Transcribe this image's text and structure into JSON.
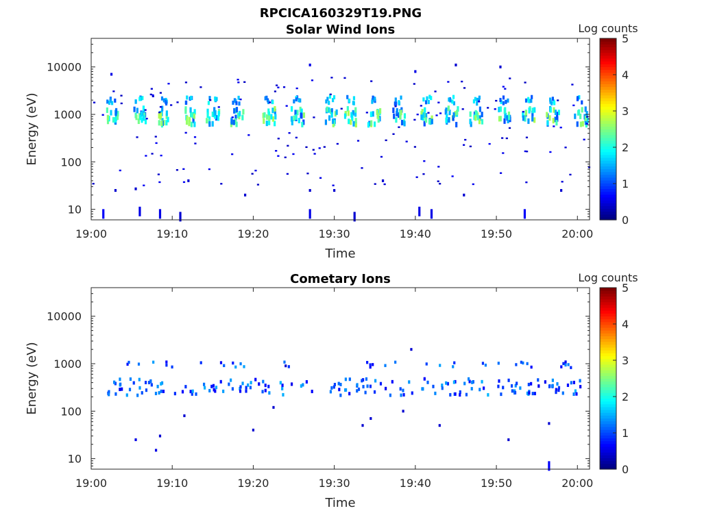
{
  "figure": {
    "suptitle": "RPCICA160329T19.PNG"
  },
  "colorbar": {
    "label": "Log counts",
    "ticks": [
      "0",
      "1",
      "2",
      "3",
      "4",
      "5"
    ],
    "range": [
      0,
      5
    ],
    "colormap": "jet"
  },
  "chart_data": [
    {
      "type": "heatmap",
      "title": "Solar Wind Ions",
      "xlabel": "Time",
      "ylabel": "Energy (eV)",
      "x_ticks": [
        "19:00",
        "19:10",
        "19:20",
        "19:30",
        "19:40",
        "19:50",
        "20:00"
      ],
      "y_ticks": [
        "10",
        "100",
        "1000",
        "10000"
      ],
      "y_scale": "log",
      "ylim_eV": [
        6,
        40000
      ],
      "xlim_min": [
        0,
        61.5
      ],
      "x_unit": "minutes after 19:00",
      "z_label": "Log counts",
      "zlim": [
        0,
        5
      ],
      "main_beam": {
        "energy_eV": 900,
        "secondary_energy_eV": 2000,
        "peak_log_counts": 2.8,
        "burst_times_min": [
          2.5,
          6,
          9,
          12,
          15,
          18,
          22,
          25.5,
          29.5,
          32,
          35,
          38,
          41.5,
          44.5,
          47.5,
          51,
          54,
          57,
          60.5
        ]
      },
      "sparse_points": [
        {
          "t": 1.5,
          "e": 8,
          "v": 0.6
        },
        {
          "t": 6,
          "e": 9,
          "v": 0.5
        },
        {
          "t": 8.5,
          "e": 8,
          "v": 0.5
        },
        {
          "t": 11,
          "e": 7,
          "v": 0.4
        },
        {
          "t": 27,
          "e": 8,
          "v": 0.5
        },
        {
          "t": 32.5,
          "e": 7,
          "v": 0.4
        },
        {
          "t": 40.5,
          "e": 9,
          "v": 0.5
        },
        {
          "t": 42,
          "e": 8,
          "v": 0.5
        },
        {
          "t": 53.5,
          "e": 8,
          "v": 0.6
        },
        {
          "t": 2.5,
          "e": 7000,
          "v": 0.5
        },
        {
          "t": 27,
          "e": 11000,
          "v": 0.5
        },
        {
          "t": 45,
          "e": 11000,
          "v": 0.4
        },
        {
          "t": 50.5,
          "e": 10000,
          "v": 0.4
        },
        {
          "t": 40,
          "e": 8000,
          "v": 0.5
        },
        {
          "t": 5.5,
          "e": 27,
          "v": 0.4
        },
        {
          "t": 12,
          "e": 40,
          "v": 0.4
        },
        {
          "t": 19,
          "e": 20,
          "v": 0.4
        },
        {
          "t": 27,
          "e": 25,
          "v": 0.4
        },
        {
          "t": 30,
          "e": 25,
          "v": 0.4
        },
        {
          "t": 46,
          "e": 20,
          "v": 0.4
        },
        {
          "t": 58,
          "e": 25,
          "v": 0.4
        },
        {
          "t": 3,
          "e": 25,
          "v": 0.4
        },
        {
          "t": 36,
          "e": 40,
          "v": 0.4
        }
      ]
    },
    {
      "type": "heatmap",
      "title": "Cometary Ions",
      "xlabel": "Time",
      "ylabel": "Energy (eV)",
      "x_ticks": [
        "19:00",
        "19:10",
        "19:20",
        "19:30",
        "19:40",
        "19:50",
        "20:00"
      ],
      "y_ticks": [
        "10",
        "100",
        "1000",
        "10000"
      ],
      "y_scale": "log",
      "ylim_eV": [
        6,
        40000
      ],
      "xlim_min": [
        0,
        61.5
      ],
      "x_unit": "minutes after 19:00",
      "z_label": "Log counts",
      "zlim": [
        0,
        5
      ],
      "main_band": {
        "energy_eV": 320,
        "upper_energy_eV": 950,
        "peak_log_counts": 1.8
      },
      "sparse_points": [
        {
          "t": 5.5,
          "e": 25,
          "v": 0.5
        },
        {
          "t": 8,
          "e": 15,
          "v": 0.5
        },
        {
          "t": 8.5,
          "e": 30,
          "v": 0.4
        },
        {
          "t": 11.5,
          "e": 80,
          "v": 0.4
        },
        {
          "t": 20,
          "e": 40,
          "v": 0.4
        },
        {
          "t": 33.5,
          "e": 50,
          "v": 0.4
        },
        {
          "t": 34.5,
          "e": 70,
          "v": 0.4
        },
        {
          "t": 38.5,
          "e": 100,
          "v": 0.4
        },
        {
          "t": 39.5,
          "e": 2000,
          "v": 0.4
        },
        {
          "t": 43,
          "e": 50,
          "v": 0.4
        },
        {
          "t": 51.5,
          "e": 25,
          "v": 0.4
        },
        {
          "t": 56.5,
          "e": 7,
          "v": 0.6
        },
        {
          "t": 56.5,
          "e": 55,
          "v": 0.4
        },
        {
          "t": 22.5,
          "e": 120,
          "v": 0.4
        },
        {
          "t": 24,
          "e": 900,
          "v": 0.4
        }
      ]
    }
  ]
}
